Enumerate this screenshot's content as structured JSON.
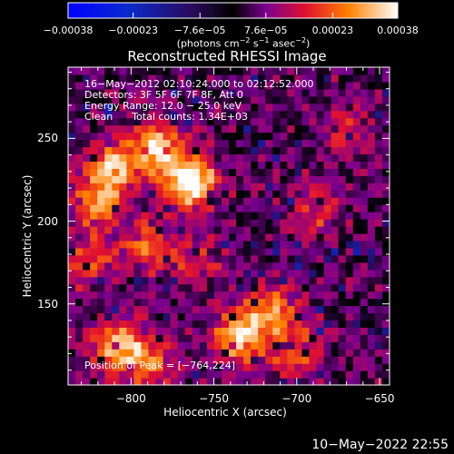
{
  "chart_data": {
    "type": "heatmap",
    "title": "Reconstructed RHESSI Image",
    "xlabel": "Heliocentric X (arcsec)",
    "ylabel": "Heliocentric Y (arcsec)",
    "xlim": [
      -838,
      -644
    ],
    "ylim": [
      101,
      293
    ],
    "x_ticks": [
      -800,
      -750,
      -700,
      -650
    ],
    "x_tick_labels": [
      "−800",
      "−750",
      "−700",
      "−650"
    ],
    "y_ticks": [
      150,
      200,
      250
    ],
    "y_tick_labels": [
      "150",
      "200",
      "250"
    ],
    "colorbar": {
      "ticks": [
        -0.00038,
        -0.00023,
        -7.6e-05,
        7.6e-05,
        0.00023,
        0.00038
      ],
      "tick_labels": [
        "−0.00038",
        "−0.00023",
        "−7.6e−05",
        "7.6e−05",
        "0.00023",
        "0.00038"
      ],
      "units_prefix": "(photons cm",
      "units_middle": " s",
      "units_rest": " asec",
      "units_end": ")",
      "units_exp_a": "−2",
      "units_exp_b": "−1",
      "units_exp_c": "−2",
      "range": [
        -0.00038,
        0.00038
      ]
    },
    "annotations": {
      "time_range": "16−May−2012 02:10:24.000 to 02:12:52.000",
      "detectors": "Detectors: 3F 5F 6F 7F 8F, Att 0",
      "energy": "Energy Range: 12.0 − 25.0 keV",
      "method": "Clean      Total counts: 1.34E+03",
      "peak": "Position of Peak = [−764,224]"
    },
    "peak_position": [
      -764,
      224
    ],
    "sources": [
      {
        "x": -764,
        "y": 224,
        "intensity": 0.00038
      },
      {
        "x": -785,
        "y": 245,
        "intensity": 0.0003
      },
      {
        "x": -812,
        "y": 232,
        "intensity": 0.00025
      },
      {
        "x": -820,
        "y": 210,
        "intensity": 0.0002
      },
      {
        "x": -790,
        "y": 185,
        "intensity": 0.00018
      },
      {
        "x": -825,
        "y": 175,
        "intensity": 0.00015
      },
      {
        "x": -810,
        "y": 125,
        "intensity": 0.00026
      },
      {
        "x": -790,
        "y": 115,
        "intensity": 0.0002
      },
      {
        "x": -735,
        "y": 130,
        "intensity": 0.00028
      },
      {
        "x": -715,
        "y": 145,
        "intensity": 0.00022
      },
      {
        "x": -700,
        "y": 120,
        "intensity": 0.00015
      },
      {
        "x": -690,
        "y": 205,
        "intensity": 0.00012
      },
      {
        "x": -670,
        "y": 255,
        "intensity": 0.0001
      },
      {
        "x": -760,
        "y": 175,
        "intensity": 0.0001
      }
    ]
  },
  "footer": {
    "timestamp": "10−May−2022 22:55"
  }
}
